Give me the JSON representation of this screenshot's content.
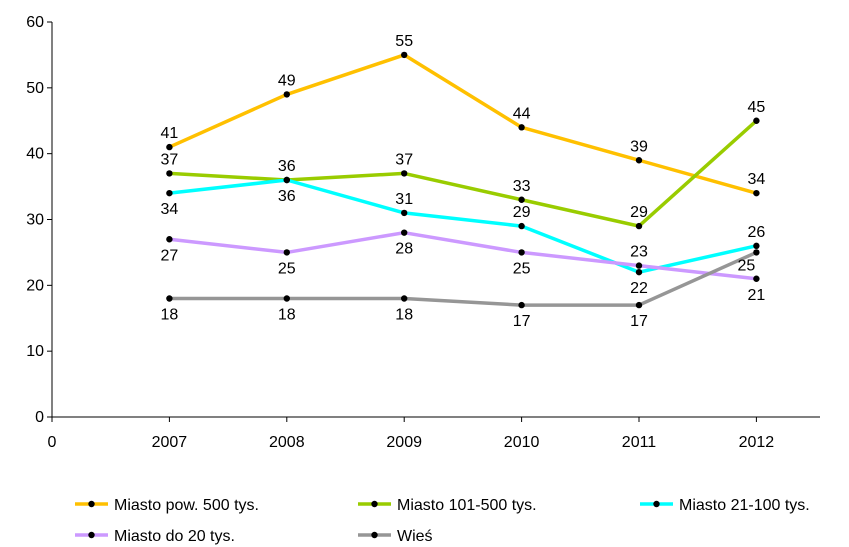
{
  "chart_data": {
    "type": "line",
    "title": "",
    "xlabel": "",
    "ylabel": "",
    "x": [
      2007,
      2008,
      2009,
      2010,
      2011,
      2012
    ],
    "x_tick_labels": [
      "0",
      "2007",
      "2008",
      "2009",
      "2010",
      "2011",
      "2012"
    ],
    "ylim": [
      0,
      60
    ],
    "y_ticks": [
      0,
      10,
      20,
      30,
      40,
      50,
      60
    ],
    "grid": false,
    "legend_position": "bottom",
    "series": [
      {
        "name": "Miasto pow. 500 tys.",
        "color": "#FFC000",
        "values": [
          41,
          49,
          55,
          44,
          39,
          34
        ],
        "label_pos": [
          "above",
          "above",
          "above",
          "above",
          "above",
          "above"
        ]
      },
      {
        "name": "Miasto 101-500 tys.",
        "color": "#99CC00",
        "values": [
          37,
          36,
          37,
          33,
          29,
          45
        ],
        "label_pos": [
          "above",
          "above",
          "above",
          "above",
          "above",
          "above"
        ]
      },
      {
        "name": "Miasto 21-100 tys.",
        "color": "#00FFFF",
        "values": [
          34,
          36,
          31,
          29,
          22,
          26
        ],
        "label_pos": [
          "below",
          "below",
          "above",
          "above",
          "below",
          "above"
        ]
      },
      {
        "name": "Miasto do 20 tys.",
        "color": "#CC99FF",
        "values": [
          27,
          25,
          28,
          25,
          23,
          21
        ],
        "label_pos": [
          "below",
          "below",
          "below",
          "below",
          "above",
          "below"
        ]
      },
      {
        "name": "Wieś",
        "color": "#969696",
        "values": [
          18,
          18,
          18,
          17,
          17,
          25
        ],
        "label_pos": [
          "below",
          "below",
          "below",
          "below",
          "below",
          "right"
        ]
      }
    ]
  }
}
